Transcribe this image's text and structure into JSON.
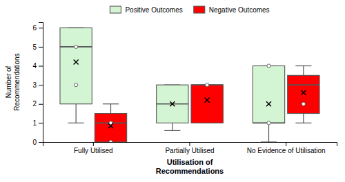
{
  "chart_data": {
    "type": "box",
    "xlabel": "Utilisation of\nRecommendations",
    "ylabel": "Number of\nRecommendations",
    "categories": [
      "Fully Utilised",
      "Partially Utilised",
      "No Evidence of Utilisation"
    ],
    "series": [
      {
        "name": "Positive Outcomes",
        "color": "#d4f5d4",
        "whislo": [
          1.0,
          0.6,
          0.0
        ],
        "q1": [
          2.0,
          1.0,
          1.0
        ],
        "med": [
          5.0,
          2.0,
          1.0
        ],
        "q3": [
          6.0,
          3.0,
          4.0
        ],
        "whishi": [
          6.0,
          3.0,
          4.0
        ],
        "mean": [
          4.2,
          2.0,
          2.0
        ],
        "fliers": [
          [
            3.0,
            5.0
          ],
          [],
          [
            1.0,
            4.0
          ]
        ]
      },
      {
        "name": "Negative Outcomes",
        "color": "#FF0000",
        "whislo": [
          0.0,
          1.0,
          1.0
        ],
        "q1": [
          0.0,
          1.0,
          1.5
        ],
        "med": [
          1.0,
          3.0,
          3.0
        ],
        "q3": [
          1.5,
          3.0,
          3.5
        ],
        "whishi": [
          2.0,
          3.0,
          4.0
        ],
        "mean": [
          0.85,
          2.2,
          2.6
        ],
        "fliers": [
          [
            0.0,
            1.0
          ],
          [
            3.0
          ],
          [
            2.0
          ]
        ]
      }
    ],
    "ylim": [
      0,
      6.3
    ],
    "yticks": [
      0,
      1,
      2,
      3,
      4,
      5,
      6
    ],
    "grid": false,
    "legend": "top"
  }
}
